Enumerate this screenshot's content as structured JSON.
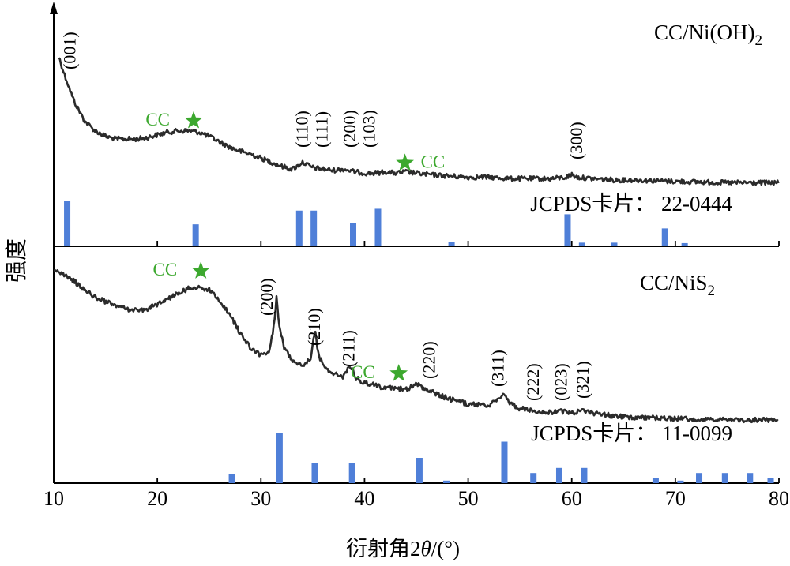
{
  "chart_data": [
    {
      "type": "line",
      "name": "CC/Ni(OH)2",
      "xlim": [
        10,
        80
      ],
      "label_main": "CC/Ni(OH)",
      "label_sub": "2",
      "ref_label": "JCPDS卡片： 22-0444",
      "x": [
        10.5,
        11,
        12,
        13,
        14,
        15,
        16,
        17,
        18,
        19,
        20,
        21,
        22,
        23,
        24,
        25,
        26,
        27,
        28,
        29,
        30,
        31,
        32,
        33,
        33.5,
        34,
        34.5,
        35,
        36,
        37,
        38,
        39,
        40,
        41,
        42,
        43,
        44,
        45,
        46,
        48,
        50,
        52,
        54,
        56,
        58,
        59.5,
        60,
        60.5,
        62,
        64,
        66,
        70,
        75,
        80
      ],
      "y": [
        0.9,
        0.78,
        0.57,
        0.43,
        0.36,
        0.32,
        0.3,
        0.3,
        0.3,
        0.31,
        0.33,
        0.35,
        0.36,
        0.36,
        0.35,
        0.32,
        0.28,
        0.24,
        0.21,
        0.19,
        0.16,
        0.13,
        0.1,
        0.08,
        0.1,
        0.13,
        0.11,
        0.09,
        0.08,
        0.07,
        0.08,
        0.06,
        0.05,
        0.05,
        0.06,
        0.05,
        0.06,
        0.05,
        0.04,
        0.03,
        0.02,
        0.02,
        0.01,
        0.01,
        0.01,
        0.02,
        0.04,
        0.02,
        0.01,
        0.0,
        0.0,
        -0.01,
        -0.02,
        -0.02
      ],
      "reference_bars": [
        {
          "x": 11.3,
          "h": 1.0
        },
        {
          "x": 23.7,
          "h": 0.48
        },
        {
          "x": 33.7,
          "h": 0.78
        },
        {
          "x": 35.1,
          "h": 0.78
        },
        {
          "x": 38.9,
          "h": 0.5
        },
        {
          "x": 41.3,
          "h": 0.82
        },
        {
          "x": 48.4,
          "h": 0.1
        },
        {
          "x": 59.6,
          "h": 0.7
        },
        {
          "x": 61.0,
          "h": 0.08
        },
        {
          "x": 64.1,
          "h": 0.08
        },
        {
          "x": 69.0,
          "h": 0.39
        },
        {
          "x": 70.9,
          "h": 0.07
        }
      ],
      "peak_labels": [
        {
          "text": "(001)",
          "x": 11.5
        },
        {
          "text": "(110)",
          "x": 33.9
        },
        {
          "text": "(111)",
          "x": 35.8
        },
        {
          "text": "(200)",
          "x": 38.5
        },
        {
          "text": "(103)",
          "x": 40.4
        },
        {
          "text": "(300)",
          "x": 60.4
        }
      ],
      "cc_markers": [
        {
          "label": "CC",
          "x": 23.5,
          "y": 0.4
        },
        {
          "label": "CC",
          "x": 43.9,
          "y": 0.09
        }
      ]
    },
    {
      "type": "line",
      "name": "CC/NiS2",
      "xlim": [
        10,
        80
      ],
      "label_main": "CC/NiS",
      "label_sub": "2",
      "ref_label": "JCPDS卡片： 11-0099",
      "x": [
        10,
        11,
        12,
        13,
        14,
        15,
        16,
        17,
        18,
        19,
        20,
        21,
        22,
        23,
        24,
        25,
        26,
        27,
        28,
        29,
        30,
        30.8,
        31.3,
        31.5,
        31.8,
        32.3,
        33,
        34,
        34.8,
        35.2,
        35.6,
        36.2,
        37,
        38,
        38.6,
        39.2,
        40,
        41,
        42,
        43,
        44,
        45,
        46,
        47,
        48,
        50,
        52,
        53,
        53.4,
        54,
        55,
        56,
        57,
        58,
        59,
        60,
        61,
        62,
        64,
        66,
        70,
        75,
        80
      ],
      "y": [
        1.0,
        0.95,
        0.91,
        0.85,
        0.8,
        0.77,
        0.74,
        0.72,
        0.71,
        0.72,
        0.75,
        0.79,
        0.83,
        0.86,
        0.87,
        0.85,
        0.78,
        0.68,
        0.55,
        0.45,
        0.4,
        0.42,
        0.62,
        0.8,
        0.58,
        0.44,
        0.37,
        0.33,
        0.38,
        0.57,
        0.39,
        0.31,
        0.27,
        0.25,
        0.33,
        0.24,
        0.21,
        0.19,
        0.17,
        0.17,
        0.16,
        0.2,
        0.16,
        0.13,
        0.1,
        0.06,
        0.05,
        0.1,
        0.14,
        0.07,
        0.03,
        0.02,
        0.01,
        0.0,
        0.01,
        0.0,
        0.01,
        0.0,
        -0.02,
        -0.03,
        -0.04,
        -0.05,
        -0.05
      ],
      "reference_bars": [
        {
          "x": 27.2,
          "h": 0.18
        },
        {
          "x": 31.8,
          "h": 1.0
        },
        {
          "x": 35.2,
          "h": 0.4
        },
        {
          "x": 38.8,
          "h": 0.4
        },
        {
          "x": 45.3,
          "h": 0.5
        },
        {
          "x": 47.9,
          "h": 0.05
        },
        {
          "x": 53.5,
          "h": 0.82
        },
        {
          "x": 56.3,
          "h": 0.2
        },
        {
          "x": 58.8,
          "h": 0.3
        },
        {
          "x": 61.2,
          "h": 0.3
        },
        {
          "x": 68.1,
          "h": 0.1
        },
        {
          "x": 70.5,
          "h": 0.05
        },
        {
          "x": 72.3,
          "h": 0.2
        },
        {
          "x": 74.8,
          "h": 0.2
        },
        {
          "x": 77.2,
          "h": 0.2
        },
        {
          "x": 79.2,
          "h": 0.1
        }
      ],
      "peak_labels": [
        {
          "text": "(200)",
          "x": 30.5
        },
        {
          "text": "(210)",
          "x": 35.1
        },
        {
          "text": "(211)",
          "x": 38.4
        },
        {
          "text": "(220)",
          "x": 46.2
        },
        {
          "text": "(311)",
          "x": 52.8
        },
        {
          "text": "(222)",
          "x": 56.2
        },
        {
          "text": "(023)",
          "x": 58.9
        },
        {
          "text": "(321)",
          "x": 61.0
        }
      ],
      "cc_markers": [
        {
          "label": "CC",
          "x": 24.2,
          "y": 0.95
        },
        {
          "label": "CC",
          "x": 43.3,
          "y": 0.24
        }
      ]
    }
  ],
  "axes": {
    "xlabel_prefix": "衍射角2",
    "xlabel_theta": "θ",
    "xlabel_suffix": "/(°)",
    "ylabel": "强度",
    "xticks": [
      "10",
      "20",
      "30",
      "40",
      "50",
      "60",
      "70",
      "80"
    ],
    "xmin": 10,
    "xmax": 80
  },
  "colors": {
    "curve": "#2b2b2b",
    "bar": "#4f7fd8",
    "star": "#3ca82e",
    "cc_text": "#3ca82e",
    "axis": "#000000"
  }
}
